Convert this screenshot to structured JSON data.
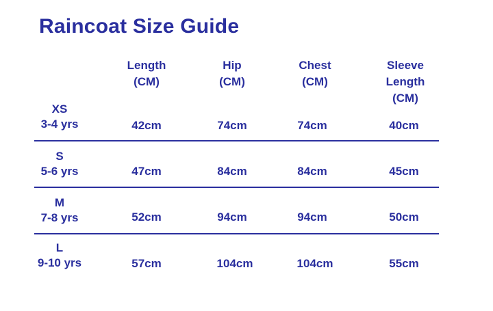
{
  "title": "Raincoat Size Guide",
  "headers": {
    "length": "Length\n(CM)",
    "hip": "Hip\n(CM)",
    "chest": "Chest\n(CM)",
    "sleeve": "Sleeve\nLength\n(CM)"
  },
  "rows": [
    {
      "size": "XS",
      "age": "3-4 yrs",
      "length": "42cm",
      "hip": "74cm",
      "chest": "74cm",
      "sleeve": "40cm"
    },
    {
      "size": "S",
      "age": "5-6 yrs",
      "length": "47cm",
      "hip": "84cm",
      "chest": "84cm",
      "sleeve": "45cm"
    },
    {
      "size": "M",
      "age": "7-8 yrs",
      "length": "52cm",
      "hip": "94cm",
      "chest": "94cm",
      "sleeve": "50cm"
    },
    {
      "size": "L",
      "age": "9-10 yrs",
      "length": "57cm",
      "hip": "104cm",
      "chest": "104cm",
      "sleeve": "55cm"
    }
  ],
  "colors": {
    "text": "#2a2f9e",
    "divider": "#2a2f9e",
    "background": "#ffffff"
  }
}
